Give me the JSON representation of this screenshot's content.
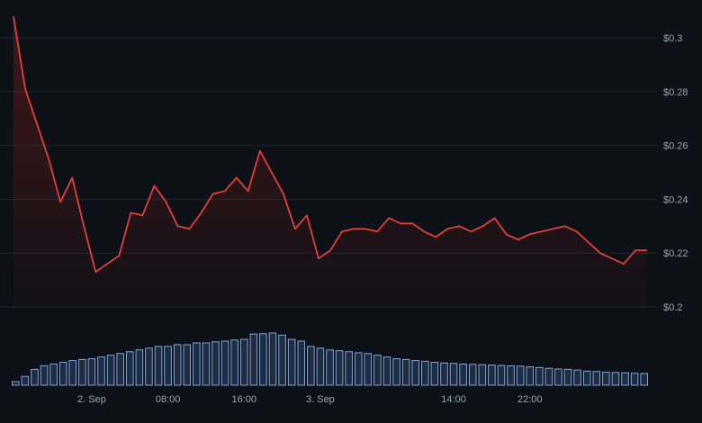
{
  "chart_data": {
    "type": "line",
    "colors": {
      "background": "#0d1117",
      "grid": "#1f2630",
      "line": "#e0403a",
      "area_top": "#6e1a18",
      "volume_fill": "#1e2c44",
      "volume_stroke": "#7fa2d6",
      "tick_text": "#9aa4b2"
    },
    "y_axis": {
      "position": "right",
      "min": 0.2,
      "max": 0.3,
      "ticks": [
        0.2,
        0.22,
        0.24,
        0.26,
        0.28,
        0.3
      ],
      "tick_labels": [
        "$0.2",
        "$0.22",
        "$0.24",
        "$0.26",
        "$0.28",
        "$0.3"
      ]
    },
    "x_axis": {
      "ticks": [
        {
          "slot": 8,
          "label": "2. Sep"
        },
        {
          "slot": 16,
          "label": "08:00"
        },
        {
          "slot": 24,
          "label": "16:00"
        },
        {
          "slot": 32,
          "label": "3. Sep"
        },
        {
          "slot": 46,
          "label": "14:00"
        },
        {
          "slot": 54,
          "label": "22:00"
        }
      ]
    },
    "grid": true,
    "series": [
      {
        "values": [
          0.308,
          0.281,
          0.268,
          0.255,
          0.239,
          0.248,
          0.23,
          0.213,
          0.216,
          0.219,
          0.235,
          0.234,
          0.245,
          0.239,
          0.23,
          0.229,
          0.235,
          0.242,
          0.243,
          0.248,
          0.243,
          0.258,
          0.25,
          0.242,
          0.229,
          0.234,
          0.218,
          0.221,
          0.228,
          0.229,
          0.229,
          0.228,
          0.233,
          0.231,
          0.231,
          0.228,
          0.226,
          0.229,
          0.23,
          0.228,
          0.23,
          0.233,
          0.227,
          0.225,
          0.227,
          0.228,
          0.229,
          0.23,
          0.228,
          0.224,
          0.22,
          0.218,
          0.216,
          0.221,
          0.221
        ]
      }
    ],
    "volume": [
      1.0,
      2.5,
      4.5,
      5.5,
      6.0,
      6.5,
      7.0,
      7.3,
      7.5,
      8.0,
      8.5,
      9.0,
      9.5,
      10.0,
      10.5,
      11.0,
      11.0,
      11.5,
      11.5,
      12.0,
      12.0,
      12.3,
      12.5,
      12.8,
      13.0,
      14.5,
      14.6,
      14.8,
      14.2,
      13.0,
      12.5,
      11.0,
      10.5,
      10.0,
      9.8,
      9.5,
      9.2,
      9.0,
      8.5,
      8.0,
      7.5,
      7.3,
      7.0,
      6.8,
      6.5,
      6.3,
      6.2,
      6.0,
      5.9,
      5.8,
      5.7,
      5.6,
      5.5,
      5.4,
      5.2,
      5.0,
      4.8,
      4.6,
      4.5,
      4.3,
      4.0,
      3.9,
      3.7,
      3.6,
      3.5,
      3.4,
      3.3
    ]
  }
}
